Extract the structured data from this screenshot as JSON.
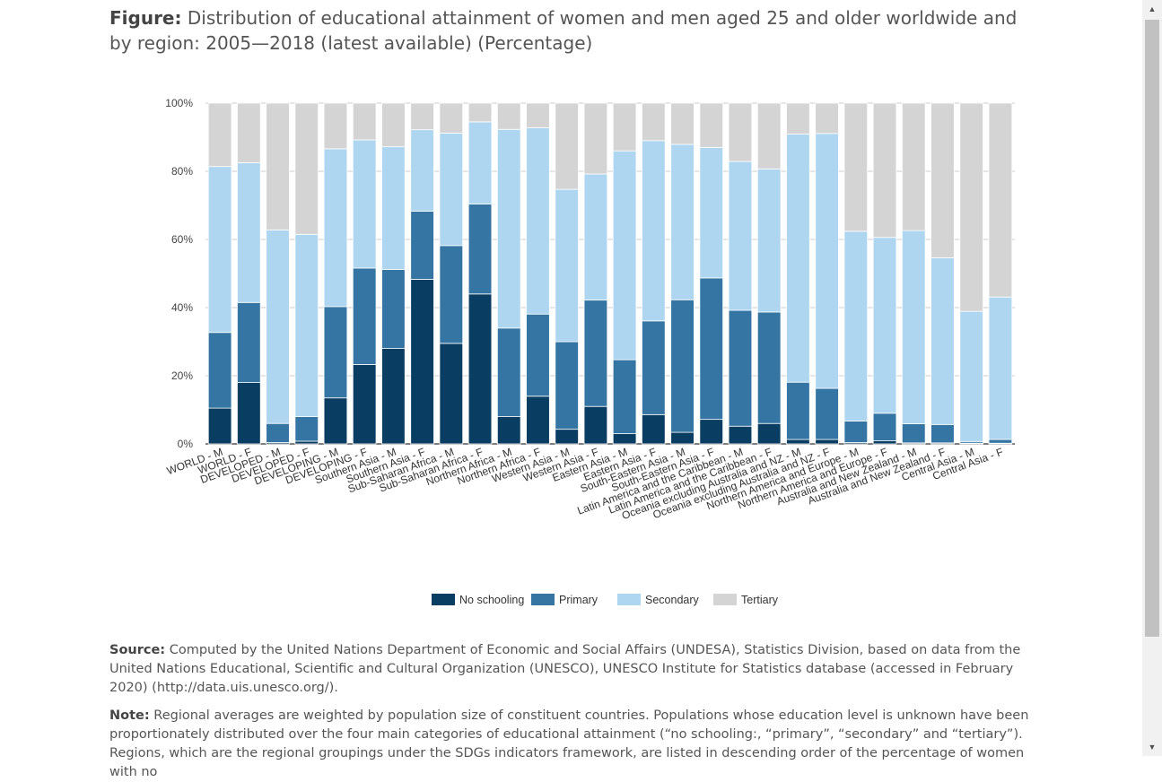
{
  "figure": {
    "title_prefix": "Figure:",
    "title_text": " Distribution of educational attainment of women and men aged 25 and older worldwide and by region: 2005—2018 (latest available) (Percentage)"
  },
  "source": {
    "label": "Source:",
    "text": " Computed by the United Nations Department of Economic and Social Affairs (UNDESA), Statistics Division, based on data from the United Nations Educational, Scientific and Cultural Organization (UNESCO), UNESCO Institute for Statistics database (accessed in February 2020) (http://data.uis.unesco.org/)."
  },
  "note": {
    "label": "Note:",
    "text": " Regional averages are weighted by population size of constituent countries. Populations whose education level is unknown have been proportionately distributed over the four main categories of educational attainment (“no schooling:, “primary”, “secondary” and “tertiary”). Regions, which are the regional groupings under the SDGs indicators framework, are listed in descending order of the percentage of women with no"
  },
  "chart_data": {
    "type": "bar",
    "stacked": true,
    "ylim": [
      0,
      100
    ],
    "y_ticks": [
      "0%",
      "20%",
      "40%",
      "60%",
      "80%",
      "100%"
    ],
    "grid": true,
    "legend_position": "bottom",
    "categories": [
      "WORLD - M",
      "WORLD - F",
      "DEVELOPED - M",
      "DEVELOPED - F",
      "DEVELOPING - M",
      "DEVELOPING - F",
      "Southern Asia - M",
      "Southern Asia - F",
      "Sub-Saharan Africa - M",
      "Sub-Saharan Africa - F",
      "Northern Africa - M",
      "Northern Africa - F",
      "Western Asia - M",
      "Western Asia - F",
      "Eastern Asia - M",
      "Eastern Asia - F",
      "South-Eastern Asia - M",
      "South-Eastern Asia - F",
      "Latin America and the Caribbean - M",
      "Latin America and the Caribbean - F",
      "Oceania excluding Australia and NZ - M",
      "Oceania excluding Australia and NZ - F",
      "Northern America and Europe - M",
      "Northern America and Europe - F",
      "Australia and New Zealand - M",
      "Australia and New Zealand - F",
      "Central Asia - M",
      "Central Asia - F"
    ],
    "series": [
      {
        "name": "No schooling",
        "color": "#0a3d62",
        "values": [
          10.5,
          18,
          0.4,
          0.8,
          13.5,
          23.3,
          28,
          48.3,
          29.5,
          44,
          8,
          14,
          4.3,
          11,
          3,
          8.6,
          3.4,
          7.2,
          5.2,
          6,
          1.3,
          1.3,
          0.4,
          0.9,
          0.3,
          0.3,
          0.2,
          0.2
        ]
      },
      {
        "name": "Primary",
        "color": "#3575a3",
        "values": [
          22.2,
          23.5,
          5.6,
          7.2,
          26.8,
          28.3,
          23.2,
          20,
          28.7,
          26.4,
          26,
          24.1,
          25.7,
          31.2,
          21.7,
          27.5,
          38.9,
          41.5,
          34,
          32.7,
          16.8,
          15,
          6.3,
          8.1,
          5.6,
          5.4,
          0.5,
          1.1
        ]
      },
      {
        "name": "Secondary",
        "color": "#aed6f1",
        "values": [
          48.7,
          41,
          56.8,
          53.5,
          46.3,
          37.6,
          36,
          23.9,
          33,
          24.1,
          58.3,
          54.7,
          44.7,
          37,
          61.3,
          52.9,
          45.6,
          38.3,
          43.7,
          42,
          72.8,
          74.8,
          55.7,
          51.6,
          56.7,
          48.9,
          38.2,
          41.8
        ]
      },
      {
        "name": "Tertiary",
        "color": "#d4d4d4",
        "values": [
          18.6,
          17.5,
          37.2,
          38.5,
          13.4,
          10.8,
          12.8,
          7.8,
          8.8,
          5.5,
          7.7,
          7.2,
          25.3,
          20.8,
          14,
          11,
          12.1,
          13,
          17.1,
          19.3,
          9.1,
          8.9,
          37.6,
          39.4,
          37.4,
          45.4,
          61.1,
          56.9
        ]
      }
    ]
  }
}
